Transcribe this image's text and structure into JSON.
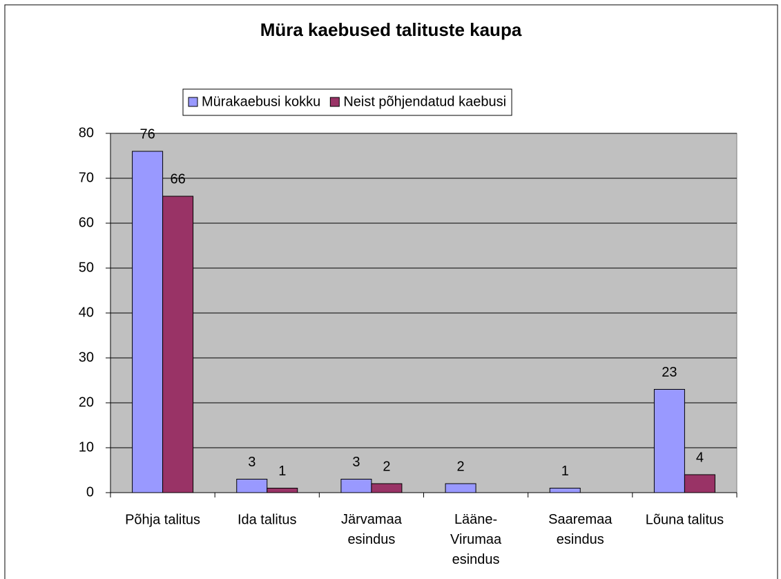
{
  "chart_data": {
    "type": "bar",
    "title": "Müra kaebused talituste kaupa",
    "categories": [
      "Põhja talitus",
      "Ida talitus",
      "Järvamaa esindus",
      "Lääne-Virumaa esindus",
      "Saaremaa esindus",
      "Lõuna talitus"
    ],
    "series": [
      {
        "name": "Mürakaebusi kokku",
        "color": "#9999ff",
        "values": [
          76,
          3,
          3,
          2,
          1,
          23
        ]
      },
      {
        "name": "Neist põhjendatud kaebusi",
        "color": "#993366",
        "values": [
          66,
          1,
          2,
          null,
          null,
          4
        ]
      }
    ],
    "ylim": [
      0,
      80
    ],
    "yticks": [
      0,
      10,
      20,
      30,
      40,
      50,
      60,
      70,
      80
    ],
    "grid": true,
    "legend": "top"
  }
}
